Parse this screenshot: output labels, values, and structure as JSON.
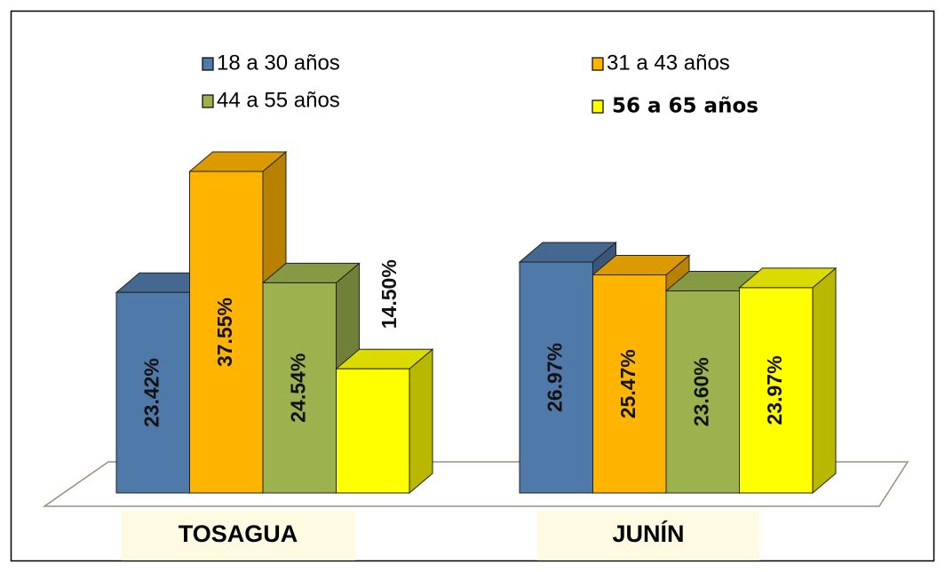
{
  "chart_data": {
    "type": "bar3d",
    "categories": [
      "TOSAGUA",
      "JUNÍN"
    ],
    "series": [
      {
        "name": "18 a 30 años",
        "color": "#4f79a8",
        "values": [
          23.42,
          26.97
        ],
        "value_labels": [
          "23.42%",
          "26.97%"
        ]
      },
      {
        "name": "31 a 43 años",
        "color": "#ffb400",
        "values": [
          37.55,
          25.47
        ],
        "value_labels": [
          "37.55%",
          "25.47%"
        ]
      },
      {
        "name": "44 a 55 años",
        "color": "#9cb24e",
        "values": [
          24.54,
          23.6
        ],
        "value_labels": [
          "24.54%",
          "23.60%"
        ]
      },
      {
        "name": "56 a 65 años",
        "color": "#ffff00",
        "values": [
          14.5,
          23.97
        ],
        "value_labels": [
          "14.50%",
          "23.97%"
        ]
      }
    ]
  }
}
